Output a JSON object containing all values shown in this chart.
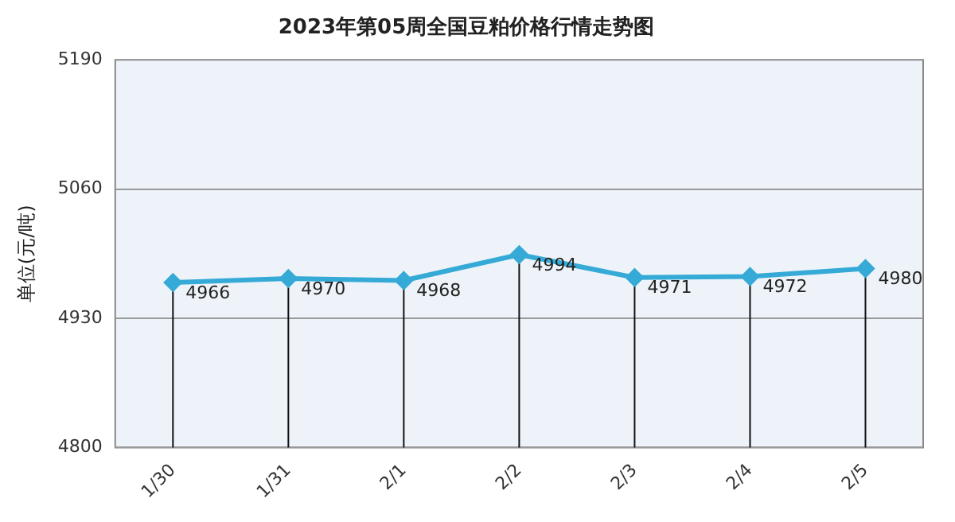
{
  "chart_data": {
    "type": "line",
    "title": "2023年第05周全国豆粕价格行情走势图",
    "ylabel": "单位(元/吨)",
    "categories": [
      "1/30",
      "1/31",
      "2/1",
      "2/2",
      "2/3",
      "2/4",
      "2/5"
    ],
    "series": [
      {
        "color": "#35aad6",
        "values": [
          4966,
          4970,
          4968,
          4994,
          4971,
          4972,
          4980
        ]
      }
    ],
    "ylim": [
      4800,
      5190
    ],
    "yticks": [
      4800,
      4930,
      5060,
      5190
    ],
    "grid": "y",
    "legend": false,
    "marker": "diamond",
    "line_style": "solid",
    "data_labels": true
  }
}
